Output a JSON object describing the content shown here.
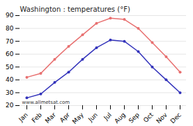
{
  "chart_data": {
    "type": "line",
    "title": "Washington : temperatures (°F)",
    "categories": [
      "Jan",
      "Feb",
      "Mar",
      "Apr",
      "May",
      "Jun",
      "Jul",
      "Aug",
      "Sep",
      "Oct",
      "Nov",
      "Dec"
    ],
    "series": [
      {
        "color": "#e87070",
        "marker": "circle",
        "values": [
          42,
          45,
          56,
          66,
          75,
          84,
          88,
          87,
          80,
          69,
          58,
          46
        ]
      },
      {
        "color": "#3333bb",
        "marker": "circle",
        "values": [
          26,
          29,
          38,
          46,
          56,
          65,
          71,
          70,
          62,
          50,
          40,
          30
        ]
      }
    ],
    "ylim": [
      20,
      90
    ],
    "yticks": [
      20,
      30,
      40,
      50,
      60,
      70,
      80,
      90
    ],
    "grid": true,
    "annotations": [
      "www.allmetsat.com"
    ]
  }
}
